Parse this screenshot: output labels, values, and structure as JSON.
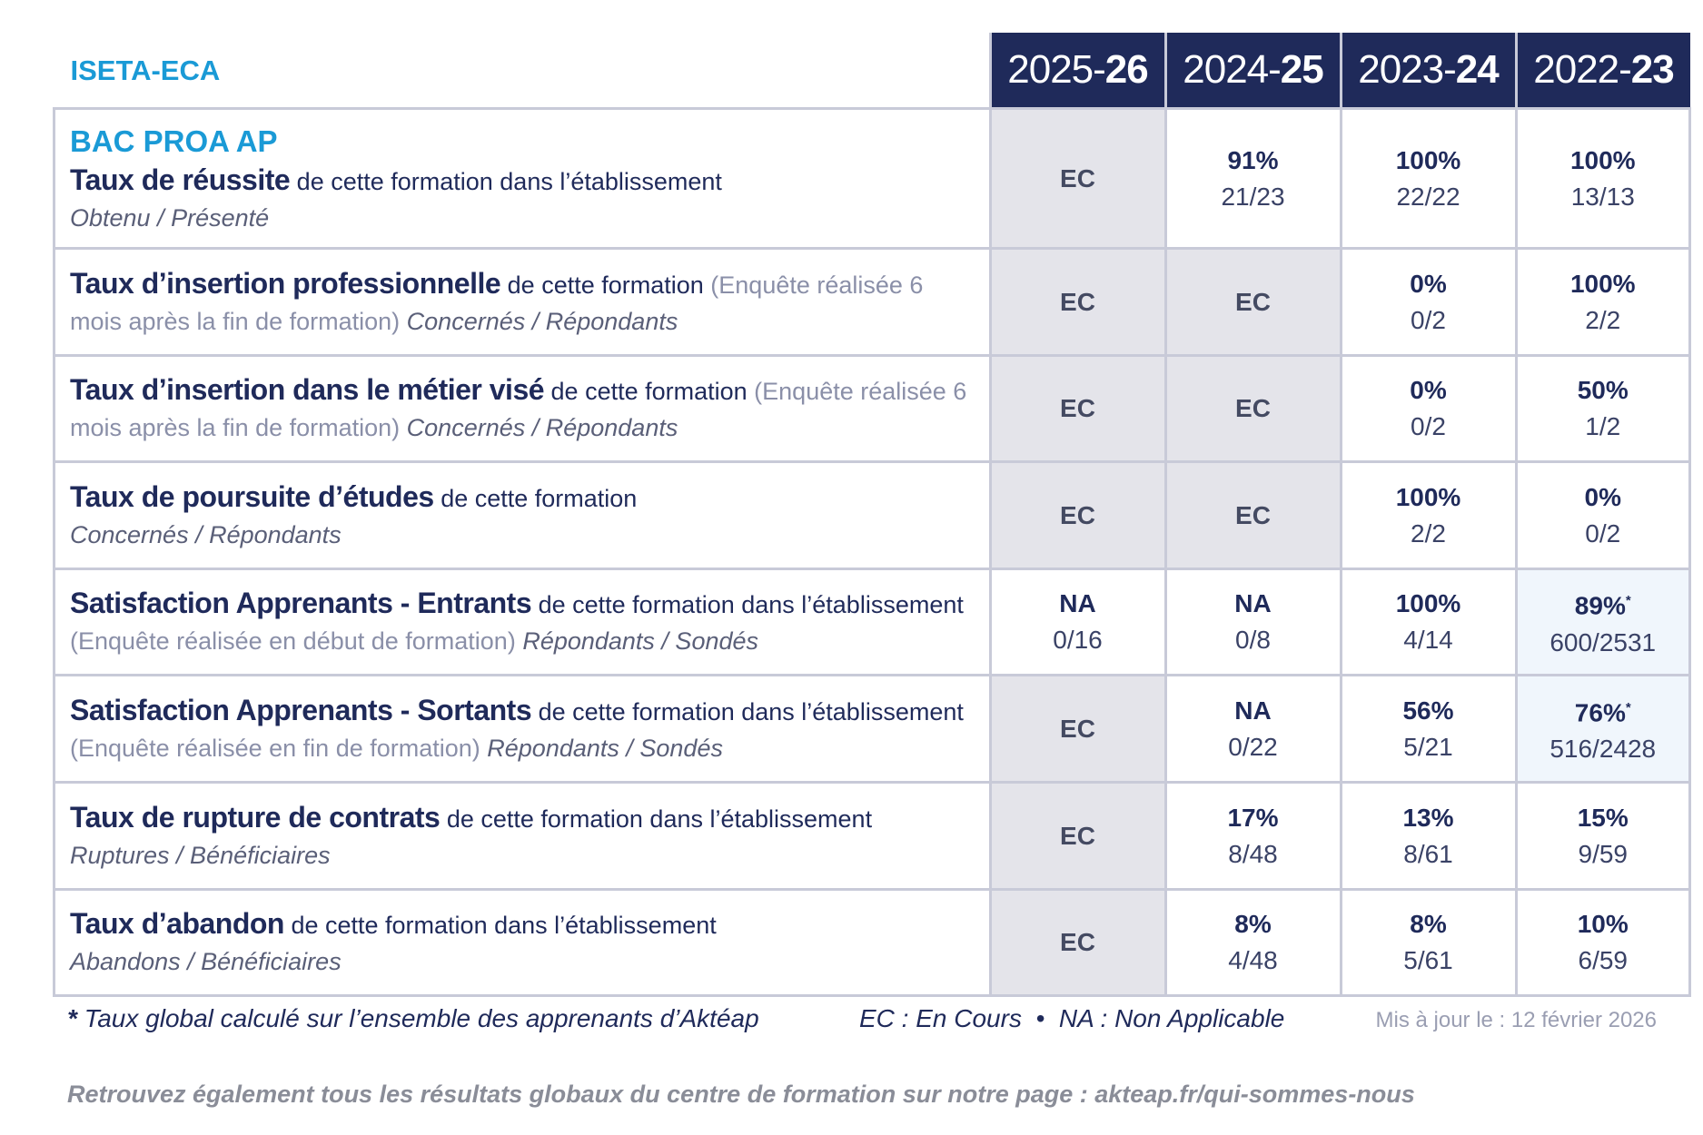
{
  "header": {
    "org": "ISETA-ECA",
    "years": [
      {
        "start": "2025-",
        "end": "26"
      },
      {
        "start": "2024-",
        "end": "25"
      },
      {
        "start": "2023-",
        "end": "24"
      },
      {
        "start": "2022-",
        "end": "23"
      }
    ]
  },
  "rows": [
    {
      "program": "BAC PROA AP",
      "bold": "Taux de réussite",
      "text": " de cette formation dans l’établissement",
      "italic": "Obtenu / Présenté",
      "cells": [
        {
          "main": "EC"
        },
        {
          "main": "91%",
          "sub": "21/23"
        },
        {
          "main": "100%",
          "sub": "22/22"
        },
        {
          "main": "100%",
          "sub": "13/13"
        }
      ]
    },
    {
      "bold": "Taux d’insertion professionnelle",
      "text": " de cette formation ",
      "note": "(Enquête réalisée 6 mois après la fin de formation)",
      "italic": " Concernés / Répondants",
      "cells": [
        {
          "main": "EC"
        },
        {
          "main": "EC"
        },
        {
          "main": "0%",
          "sub": "0/2"
        },
        {
          "main": "100%",
          "sub": "2/2"
        }
      ]
    },
    {
      "bold": "Taux d’insertion dans le métier visé",
      "text": " de cette formation ",
      "note": "(Enquête réalisée 6 mois après la fin de formation)",
      "italic": " Concernés / Répondants",
      "cells": [
        {
          "main": "EC"
        },
        {
          "main": "EC"
        },
        {
          "main": "0%",
          "sub": "0/2"
        },
        {
          "main": "50%",
          "sub": "1/2"
        }
      ]
    },
    {
      "bold": "Taux de poursuite d’études",
      "text": " de cette formation",
      "italic": "Concernés / Répondants",
      "cells": [
        {
          "main": "EC"
        },
        {
          "main": "EC"
        },
        {
          "main": "100%",
          "sub": "2/2"
        },
        {
          "main": "0%",
          "sub": "0/2"
        }
      ]
    },
    {
      "bold": "Satisfaction Apprenants - Entrants",
      "text": " de cette formation dans l’établissement ",
      "note": "(Enquête réalisée en début de formation)",
      "italic": " Répondants / Sondés",
      "cells": [
        {
          "main": "NA",
          "sub": "0/16"
        },
        {
          "main": "NA",
          "sub": "0/8"
        },
        {
          "main": "100%",
          "sub": "4/14"
        },
        {
          "main": "89%",
          "mark": "*",
          "sub": "600/2531"
        }
      ]
    },
    {
      "bold": "Satisfaction Apprenants - Sortants",
      "text": " de cette formation dans l’établissement ",
      "note": "(Enquête réalisée en fin de formation)",
      "italic": " Répondants / Sondés",
      "cells": [
        {
          "main": "EC"
        },
        {
          "main": "NA",
          "sub": "0/22"
        },
        {
          "main": "56%",
          "sub": "5/21"
        },
        {
          "main": "76%",
          "mark": "*",
          "sub": "516/2428"
        }
      ]
    },
    {
      "bold": "Taux de rupture de contrats",
      "text": " de cette formation dans l’établissement",
      "italic": "Ruptures / Bénéficiaires",
      "cells": [
        {
          "main": "EC"
        },
        {
          "main": "17%",
          "sub": "8/48"
        },
        {
          "main": "13%",
          "sub": "8/61"
        },
        {
          "main": "15%",
          "sub": "9/59"
        }
      ]
    },
    {
      "bold": "Taux d’abandon",
      "text": " de cette formation dans l’établissement",
      "italic": "Abandons / Bénéficiaires",
      "cells": [
        {
          "main": "EC"
        },
        {
          "main": "8%",
          "sub": "4/48"
        },
        {
          "main": "8%",
          "sub": "5/61"
        },
        {
          "main": "10%",
          "sub": "6/59"
        }
      ]
    }
  ],
  "footer": {
    "star": "*",
    "note": "Taux global calculé sur l’ensemble des apprenants d’Aktéap",
    "legend": "EC : En Cours  •  NA : Non Applicable",
    "updated": "Mis à jour le : 12 février 2026",
    "link": "Retrouvez également tous les résultats globaux du centre de formation sur notre page : akteap.fr/qui-sommes-nous"
  }
}
